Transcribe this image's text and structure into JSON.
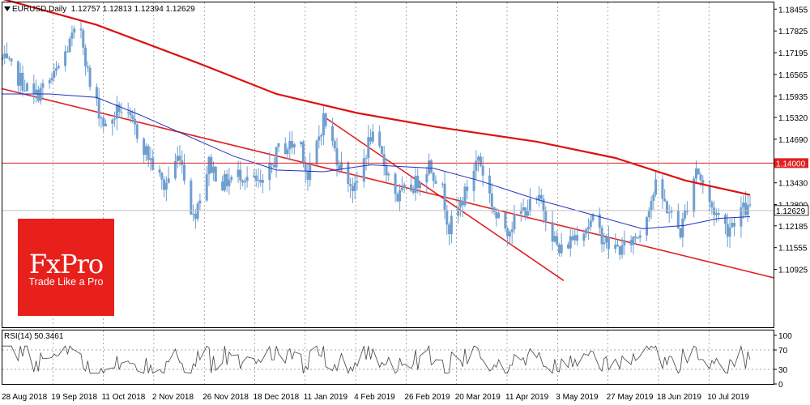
{
  "header": {
    "symbol": "EURUSD,Daily",
    "ohlc": "1.12757 1.12813 1.12394 1.12629"
  },
  "rsi_header": "RSI(14) 50.3461",
  "brand": {
    "name": "FxPro",
    "tagline": "Trade Like a Pro"
  },
  "colors": {
    "candle": "#6f9fcf",
    "ma_long": "#dd1111",
    "ma_short": "#1f2fbf",
    "level": "#e02020",
    "trend": "#e02020",
    "price_label_bg": "#ffffff"
  },
  "chart_data": [
    {
      "type": "candlestick",
      "title": "EURUSD,Daily",
      "ylim": [
        1.0925,
        1.1865
      ],
      "y_ticks": [
        "1.18455",
        "1.17825",
        "1.17195",
        "1.16565",
        "1.15935",
        "1.15320",
        "1.14690",
        "1.14060",
        "1.13430",
        "1.12800",
        "1.12185",
        "1.11555",
        "1.10925"
      ],
      "x_ticks": [
        "28 Aug 2018",
        "19 Sep 2018",
        "11 Oct 2018",
        "2 Nov 2018",
        "26 Nov 2018",
        "18 Dec 2018",
        "11 Jan 2019",
        "4 Feb 2019",
        "26 Feb 2019",
        "20 Mar 2019",
        "11 Apr 2019",
        "3 May 2019",
        "27 May 2019",
        "18 Jun 2019",
        "10 Jul 2019"
      ],
      "close_path": [
        {
          "x": "2018-08-20",
          "y": 1.17
        },
        {
          "x": "2018-08-28",
          "y": 1.164
        },
        {
          "x": "2018-09-03",
          "y": 1.159
        },
        {
          "x": "2018-09-12",
          "y": 1.165
        },
        {
          "x": "2018-09-20",
          "y": 1.176
        },
        {
          "x": "2018-09-24",
          "y": 1.179
        },
        {
          "x": "2018-09-28",
          "y": 1.162
        },
        {
          "x": "2018-10-05",
          "y": 1.15
        },
        {
          "x": "2018-10-11",
          "y": 1.156
        },
        {
          "x": "2018-10-18",
          "y": 1.15
        },
        {
          "x": "2018-10-24",
          "y": 1.142
        },
        {
          "x": "2018-10-31",
          "y": 1.133
        },
        {
          "x": "2018-11-07",
          "y": 1.143
        },
        {
          "x": "2018-11-13",
          "y": 1.124
        },
        {
          "x": "2018-11-20",
          "y": 1.14
        },
        {
          "x": "2018-11-26",
          "y": 1.134
        },
        {
          "x": "2018-12-04",
          "y": 1.137
        },
        {
          "x": "2018-12-14",
          "y": 1.133
        },
        {
          "x": "2018-12-21",
          "y": 1.144
        },
        {
          "x": "2018-12-31",
          "y": 1.146
        },
        {
          "x": "2019-01-03",
          "y": 1.135
        },
        {
          "x": "2019-01-10",
          "y": 1.153
        },
        {
          "x": "2019-01-17",
          "y": 1.14
        },
        {
          "x": "2019-01-24",
          "y": 1.132
        },
        {
          "x": "2019-01-31",
          "y": 1.148
        },
        {
          "x": "2019-02-06",
          "y": 1.14
        },
        {
          "x": "2019-02-12",
          "y": 1.13
        },
        {
          "x": "2019-02-20",
          "y": 1.134
        },
        {
          "x": "2019-02-26",
          "y": 1.14
        },
        {
          "x": "2019-03-04",
          "y": 1.132
        },
        {
          "x": "2019-03-07",
          "y": 1.121
        },
        {
          "x": "2019-03-14",
          "y": 1.131
        },
        {
          "x": "2019-03-20",
          "y": 1.142
        },
        {
          "x": "2019-03-28",
          "y": 1.124
        },
        {
          "x": "2019-04-02",
          "y": 1.121
        },
        {
          "x": "2019-04-10",
          "y": 1.127
        },
        {
          "x": "2019-04-17",
          "y": 1.129
        },
        {
          "x": "2019-04-25",
          "y": 1.114
        },
        {
          "x": "2019-05-03",
          "y": 1.12
        },
        {
          "x": "2019-05-10",
          "y": 1.123
        },
        {
          "x": "2019-05-17",
          "y": 1.116
        },
        {
          "x": "2019-05-23",
          "y": 1.115
        },
        {
          "x": "2019-05-31",
          "y": 1.12
        },
        {
          "x": "2019-06-04",
          "y": 1.128
        },
        {
          "x": "2019-06-07",
          "y": 1.133
        },
        {
          "x": "2019-06-18",
          "y": 1.12
        },
        {
          "x": "2019-06-25",
          "y": 1.139
        },
        {
          "x": "2019-07-01",
          "y": 1.128
        },
        {
          "x": "2019-07-09",
          "y": 1.121
        },
        {
          "x": "2019-07-15",
          "y": 1.1265
        },
        {
          "x": "2019-07-19",
          "y": 1.12629
        }
      ],
      "series": [
        {
          "type": "line",
          "points": [
            {
              "x": "2018-08-20",
              "y": 1.1875
            },
            {
              "x": "2018-10-01",
              "y": 1.18
            },
            {
              "x": "2018-11-15",
              "y": 1.169
            },
            {
              "x": "2018-12-20",
              "y": 1.16
            },
            {
              "x": "2019-01-25",
              "y": 1.1545
            },
            {
              "x": "2019-03-01",
              "y": 1.1505
            },
            {
              "x": "2019-04-15",
              "y": 1.1462
            },
            {
              "x": "2019-05-20",
              "y": 1.1415
            },
            {
              "x": "2019-06-20",
              "y": 1.135
            },
            {
              "x": "2019-07-19",
              "y": 1.1308
            }
          ]
        },
        {
          "type": "line",
          "points": [
            {
              "x": "2018-08-20",
              "y": 1.16
            },
            {
              "x": "2018-09-10",
              "y": 1.16
            },
            {
              "x": "2018-10-01",
              "y": 1.159
            },
            {
              "x": "2018-10-20",
              "y": 1.154
            },
            {
              "x": "2018-11-10",
              "y": 1.148
            },
            {
              "x": "2018-12-01",
              "y": 1.142
            },
            {
              "x": "2018-12-20",
              "y": 1.138
            },
            {
              "x": "2019-01-10",
              "y": 1.1375
            },
            {
              "x": "2019-01-31",
              "y": 1.1395
            },
            {
              "x": "2019-02-28",
              "y": 1.1385
            },
            {
              "x": "2019-03-20",
              "y": 1.135
            },
            {
              "x": "2019-04-15",
              "y": 1.1295
            },
            {
              "x": "2019-05-10",
              "y": 1.125
            },
            {
              "x": "2019-06-01",
              "y": 1.121
            },
            {
              "x": "2019-06-20",
              "y": 1.122
            },
            {
              "x": "2019-07-05",
              "y": 1.124
            },
            {
              "x": "2019-07-19",
              "y": 1.1245
            }
          ]
        }
      ],
      "horizontal_level": {
        "value": "1.14000"
      },
      "current_price": {
        "value": "1.12629"
      },
      "trend_lines": [
        {
          "from": {
            "x": "2018-08-20",
            "y": 1.1615
          },
          "to": {
            "x": "2019-07-19",
            "y": 1.1085
          }
        },
        {
          "from": {
            "x": "2019-01-10",
            "y": 1.1535
          },
          "to": {
            "x": "2019-04-27",
            "y": 1.106
          }
        }
      ]
    },
    {
      "type": "line",
      "title": "RSI(14)",
      "ylim": [
        0,
        100
      ],
      "y_ticks": [
        "100",
        "70",
        "30",
        "0"
      ],
      "levels": [
        70,
        30
      ],
      "last_value": 50.3461
    }
  ]
}
